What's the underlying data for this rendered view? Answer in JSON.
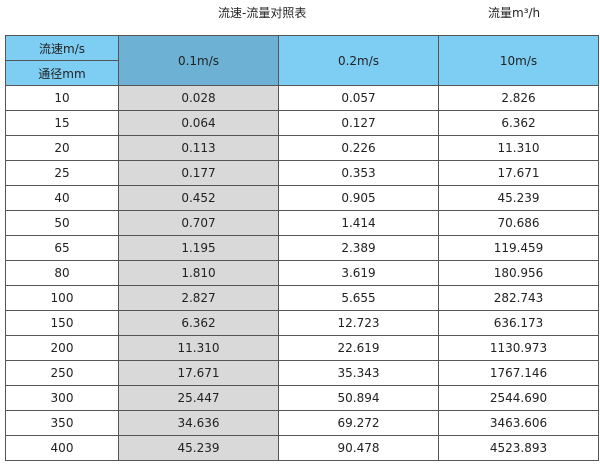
{
  "title": "流速-流量对照表",
  "unit_label": "流量m³/h",
  "colors": {
    "header": "#7ecef4",
    "header_highlight": "#6db2d5",
    "column_highlight": "#d9d9d9"
  },
  "header": {
    "row_label_top": "流速m/s",
    "row_label_bottom": "通径mm",
    "columns": [
      "0.1m/s",
      "0.2m/s",
      "10m/s"
    ]
  },
  "rows": [
    [
      "10",
      "0.028",
      "0.057",
      "2.826"
    ],
    [
      "15",
      "0.064",
      "0.127",
      "6.362"
    ],
    [
      "20",
      "0.113",
      "0.226",
      "11.310"
    ],
    [
      "25",
      "0.177",
      "0.353",
      "17.671"
    ],
    [
      "40",
      "0.452",
      "0.905",
      "45.239"
    ],
    [
      "50",
      "0.707",
      "1.414",
      "70.686"
    ],
    [
      "65",
      "1.195",
      "2.389",
      "119.459"
    ],
    [
      "80",
      "1.810",
      "3.619",
      "180.956"
    ],
    [
      "100",
      "2.827",
      "5.655",
      "282.743"
    ],
    [
      "150",
      "6.362",
      "12.723",
      "636.173"
    ],
    [
      "200",
      "11.310",
      "22.619",
      "1130.973"
    ],
    [
      "250",
      "17.671",
      "35.343",
      "1767.146"
    ],
    [
      "300",
      "25.447",
      "50.894",
      "2544.690"
    ],
    [
      "350",
      "34.636",
      "69.272",
      "3463.606"
    ],
    [
      "400",
      "45.239",
      "90.478",
      "4523.893"
    ]
  ]
}
